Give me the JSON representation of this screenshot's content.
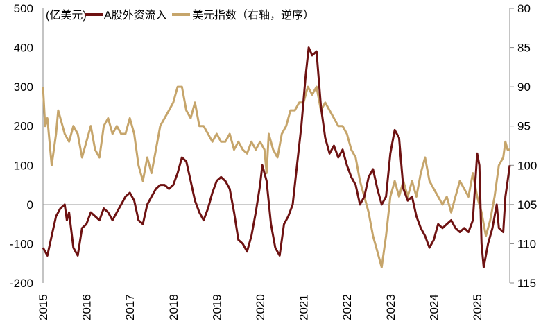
{
  "chart_data": {
    "type": "line",
    "unit_label": "(亿美元)",
    "x_tick_labels": [
      "2015",
      "2016",
      "2017",
      "2018",
      "2019",
      "2020",
      "2021",
      "2022",
      "2023",
      "2024",
      "2025"
    ],
    "xlim": [
      2015,
      2025.75
    ],
    "left_axis": {
      "ylim": [
        -200,
        500
      ],
      "ticks": [
        "-200",
        "-100",
        "0",
        "100",
        "200",
        "300",
        "400",
        "500"
      ]
    },
    "right_axis": {
      "ylim": [
        80,
        115
      ],
      "reversed": true,
      "ticks": [
        "80",
        "85",
        "90",
        "95",
        "100",
        "105",
        "110",
        "115"
      ]
    },
    "legend_placement": "top",
    "grid": false,
    "series": [
      {
        "name": "A股外资流入",
        "axis": "left",
        "color": "#6e1212",
        "x": [
          2015.0,
          2015.1,
          2015.2,
          2015.3,
          2015.4,
          2015.5,
          2015.55,
          2015.6,
          2015.7,
          2015.8,
          2015.9,
          2016.0,
          2016.1,
          2016.2,
          2016.3,
          2016.4,
          2016.5,
          2016.6,
          2016.7,
          2016.8,
          2016.9,
          2017.0,
          2017.1,
          2017.2,
          2017.3,
          2017.4,
          2017.5,
          2017.6,
          2017.7,
          2017.8,
          2017.9,
          2018.0,
          2018.1,
          2018.2,
          2018.3,
          2018.4,
          2018.5,
          2018.6,
          2018.7,
          2018.8,
          2018.9,
          2019.0,
          2019.1,
          2019.2,
          2019.3,
          2019.4,
          2019.5,
          2019.6,
          2019.7,
          2019.8,
          2019.9,
          2020.0,
          2020.05,
          2020.15,
          2020.25,
          2020.35,
          2020.45,
          2020.55,
          2020.65,
          2020.75,
          2020.85,
          2020.95,
          2021.05,
          2021.12,
          2021.2,
          2021.3,
          2021.4,
          2021.5,
          2021.6,
          2021.7,
          2021.8,
          2021.9,
          2022.0,
          2022.1,
          2022.2,
          2022.3,
          2022.4,
          2022.5,
          2022.6,
          2022.7,
          2022.8,
          2022.9,
          2023.0,
          2023.1,
          2023.2,
          2023.3,
          2023.4,
          2023.5,
          2023.6,
          2023.7,
          2023.8,
          2023.9,
          2024.0,
          2024.1,
          2024.2,
          2024.3,
          2024.4,
          2024.5,
          2024.6,
          2024.7,
          2024.8,
          2024.9,
          2025.0,
          2025.05,
          2025.1,
          2025.15,
          2025.25,
          2025.35,
          2025.45,
          2025.5,
          2025.6,
          2025.65,
          2025.7,
          2025.75
        ],
        "y": [
          -110,
          -130,
          -80,
          -30,
          -10,
          0,
          -40,
          -20,
          -110,
          -130,
          -60,
          -50,
          -20,
          -30,
          -40,
          -10,
          -20,
          -40,
          -20,
          0,
          20,
          30,
          10,
          -40,
          -50,
          0,
          20,
          40,
          50,
          50,
          40,
          50,
          80,
          120,
          110,
          60,
          10,
          -20,
          -40,
          -10,
          30,
          60,
          70,
          60,
          40,
          -20,
          -90,
          -100,
          -120,
          -80,
          -20,
          50,
          100,
          60,
          -50,
          -110,
          -130,
          -50,
          -30,
          0,
          100,
          200,
          330,
          400,
          380,
          390,
          250,
          170,
          130,
          150,
          120,
          140,
          100,
          70,
          50,
          0,
          20,
          70,
          90,
          40,
          0,
          20,
          130,
          190,
          170,
          40,
          10,
          20,
          -30,
          -60,
          -80,
          -110,
          -90,
          -50,
          -60,
          -50,
          -40,
          -60,
          -70,
          -60,
          -70,
          -40,
          130,
          100,
          -100,
          -160,
          -100,
          -60,
          0,
          -60,
          -70,
          20,
          60,
          100
        ]
      },
      {
        "name": "美元指数（右轴，逆序）",
        "axis": "right",
        "color": "#c6a56b",
        "x": [
          2015.0,
          2015.05,
          2015.1,
          2015.2,
          2015.3,
          2015.35,
          2015.5,
          2015.6,
          2015.7,
          2015.8,
          2015.9,
          2016.0,
          2016.1,
          2016.2,
          2016.3,
          2016.4,
          2016.5,
          2016.6,
          2016.7,
          2016.8,
          2016.9,
          2017.0,
          2017.1,
          2017.2,
          2017.3,
          2017.4,
          2017.5,
          2017.6,
          2017.7,
          2017.8,
          2017.9,
          2018.0,
          2018.1,
          2018.2,
          2018.3,
          2018.4,
          2018.5,
          2018.6,
          2018.7,
          2018.8,
          2018.9,
          2019.0,
          2019.1,
          2019.2,
          2019.3,
          2019.4,
          2019.5,
          2019.6,
          2019.7,
          2019.8,
          2019.9,
          2020.0,
          2020.1,
          2020.15,
          2020.2,
          2020.3,
          2020.4,
          2020.5,
          2020.6,
          2020.7,
          2020.8,
          2020.9,
          2021.0,
          2021.1,
          2021.2,
          2021.3,
          2021.4,
          2021.5,
          2021.6,
          2021.7,
          2021.8,
          2021.9,
          2022.0,
          2022.1,
          2022.2,
          2022.3,
          2022.4,
          2022.5,
          2022.6,
          2022.7,
          2022.8,
          2022.9,
          2023.0,
          2023.1,
          2023.2,
          2023.3,
          2023.4,
          2023.5,
          2023.6,
          2023.7,
          2023.8,
          2023.9,
          2024.0,
          2024.1,
          2024.2,
          2024.3,
          2024.4,
          2024.5,
          2024.6,
          2024.7,
          2024.8,
          2024.9,
          2025.0,
          2025.1,
          2025.2,
          2025.3,
          2025.4,
          2025.5,
          2025.6,
          2025.65,
          2025.7,
          2025.75
        ],
        "y": [
          90,
          95,
          94,
          100,
          96,
          93,
          96,
          97,
          95,
          96,
          99,
          97,
          95,
          98,
          99,
          95,
          94,
          96,
          95,
          96,
          96,
          94,
          96,
          100,
          102,
          99,
          101,
          98,
          95,
          94,
          93,
          92,
          90,
          90,
          93,
          94,
          92,
          95,
          95,
          96,
          97,
          96,
          97,
          97,
          96,
          98,
          97,
          98,
          98.5,
          97,
          98,
          97,
          98,
          101,
          96,
          98,
          99,
          96,
          95,
          93,
          93,
          92,
          92,
          90,
          91,
          90,
          93,
          92,
          93,
          94,
          95,
          95,
          96,
          98,
          99,
          102,
          104,
          106,
          109,
          111,
          113,
          109,
          104,
          102,
          104,
          102,
          104,
          102,
          104,
          101,
          99,
          102,
          103,
          104,
          105,
          104,
          106,
          104,
          102,
          103,
          104,
          101,
          104,
          106,
          109,
          107,
          104,
          100,
          99,
          97,
          98,
          98
        ]
      }
    ]
  }
}
